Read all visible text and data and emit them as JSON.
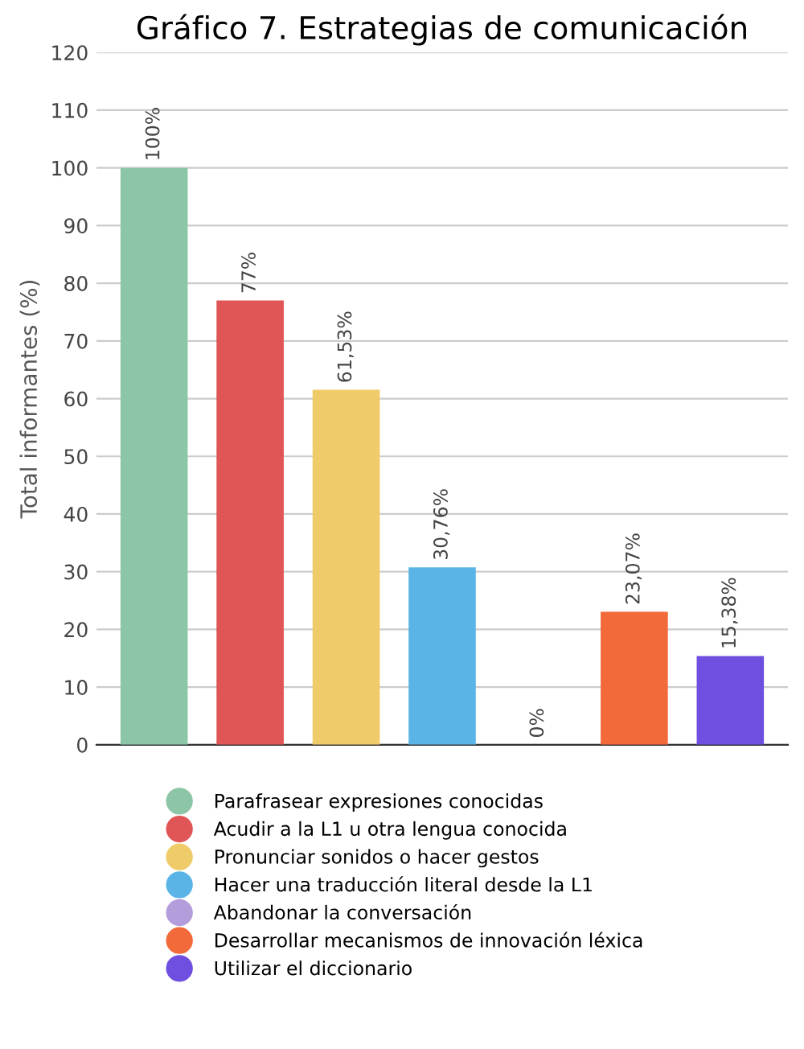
{
  "chart_data": {
    "type": "bar",
    "title": "Gráfico 7. Estrategias de comunicación",
    "ylabel": "Total informantes (%)",
    "categories": [
      null,
      null,
      null,
      null,
      null,
      null,
      null
    ],
    "series": [
      {
        "name": "Parafrasear expresiones conocidas",
        "color": "#8cc6a6",
        "values": [
          100,
          null,
          null,
          null,
          null,
          null,
          null
        ],
        "value_labels": [
          "100%",
          null,
          null,
          null,
          null,
          null,
          null
        ]
      },
      {
        "name": "Acudir a la L1 u otra lengua conocida",
        "color": "#e05656",
        "values": [
          null,
          77,
          null,
          null,
          null,
          null,
          null
        ],
        "value_labels": [
          null,
          "77%",
          null,
          null,
          null,
          null,
          null
        ]
      },
      {
        "name": "Pronunciar sonidos o hacer gestos",
        "color": "#f0cb6a",
        "values": [
          null,
          null,
          61.53,
          null,
          null,
          null,
          null
        ],
        "value_labels": [
          null,
          null,
          "61,53%",
          null,
          null,
          null,
          null
        ]
      },
      {
        "name": "Hacer una traducción literal desde la L1",
        "color": "#5ab4e6",
        "values": [
          null,
          null,
          null,
          30.76,
          null,
          null,
          null
        ],
        "value_labels": [
          null,
          null,
          null,
          "30,76%",
          null,
          null,
          null
        ]
      },
      {
        "name": "Abandonar la conversación",
        "color": "#b39ddb",
        "values": [
          null,
          null,
          null,
          null,
          0,
          null,
          null
        ],
        "value_labels": [
          null,
          null,
          null,
          null,
          "0%",
          null,
          null
        ]
      },
      {
        "name": "Desarrollar mecanismos de innovación léxica",
        "color": "#f26a3a",
        "values": [
          null,
          null,
          null,
          null,
          null,
          23.07,
          null
        ],
        "value_labels": [
          null,
          null,
          null,
          null,
          null,
          "23,07%",
          null
        ]
      },
      {
        "name": "Utilizar el diccionario",
        "color": "#6e4fe0",
        "values": [
          null,
          null,
          null,
          null,
          null,
          null,
          15.38
        ],
        "value_labels": [
          null,
          null,
          null,
          null,
          null,
          null,
          "15,38%"
        ]
      }
    ],
    "ylim": [
      0,
      120
    ],
    "yticks": [
      0,
      10,
      20,
      30,
      40,
      50,
      60,
      70,
      80,
      90,
      100,
      110,
      120
    ],
    "grid": "y",
    "legend": "bottom"
  }
}
